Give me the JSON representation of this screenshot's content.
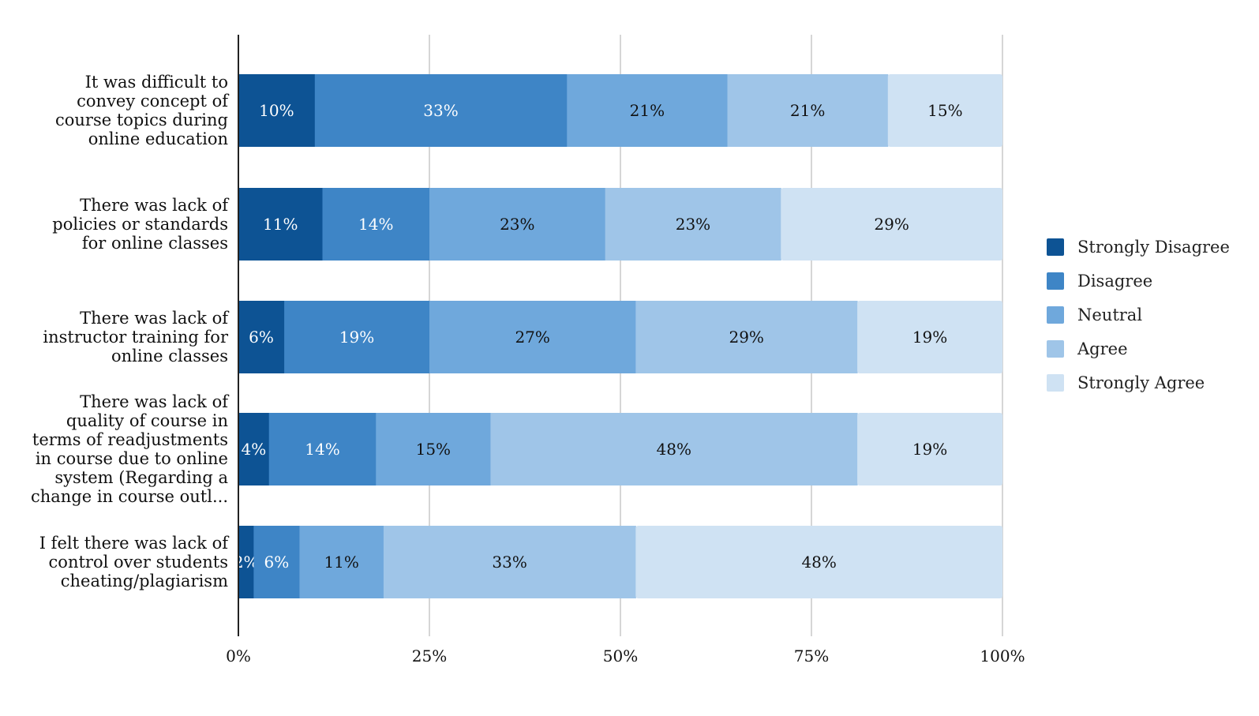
{
  "chart_data": {
    "type": "bar",
    "orientation": "horizontal",
    "stacked": true,
    "normalized": true,
    "title": "",
    "xlabel": "",
    "ylabel": "",
    "xlim": [
      0,
      100
    ],
    "xticks": [
      "0%",
      "25%",
      "50%",
      "75%",
      "100%"
    ],
    "grid": true,
    "legend_position": "right",
    "categories": [
      [
        "It was difficult to",
        "convey concept of",
        "course topics during",
        "online education"
      ],
      [
        "There was lack of",
        "policies or standards",
        "for online classes"
      ],
      [
        "There was lack of",
        "instructor training for",
        "online classes"
      ],
      [
        "There was lack of",
        "quality of course in",
        "terms of readjustments",
        "in course due to online",
        "system (Regarding a",
        "change in course outl..."
      ],
      [
        "I felt there was lack of",
        "control over students",
        "cheating/plagiarism"
      ]
    ],
    "series": [
      {
        "name": "Strongly Disagree",
        "color": "#0d5394",
        "label_color": "#ffffff",
        "values": [
          10,
          11,
          6,
          4,
          2
        ],
        "labels": [
          "10%",
          "11%",
          "6%",
          "4%",
          "2%"
        ]
      },
      {
        "name": "Disagree",
        "color": "#3e85c6",
        "label_color": "#ffffff",
        "values": [
          33,
          14,
          19,
          14,
          6
        ],
        "labels": [
          "33%",
          "14%",
          "19%",
          "14%",
          "6%"
        ]
      },
      {
        "name": "Neutral",
        "color": "#6fa8dc",
        "label_color": "#111111",
        "values": [
          21,
          23,
          27,
          15,
          11
        ],
        "labels": [
          "21%",
          "23%",
          "27%",
          "15%",
          "11%"
        ]
      },
      {
        "name": "Agree",
        "color": "#9fc5e8",
        "label_color": "#111111",
        "values": [
          21,
          23,
          29,
          48,
          33
        ],
        "labels": [
          "21%",
          "23%",
          "29%",
          "48%",
          "33%"
        ]
      },
      {
        "name": "Strongly Agree",
        "color": "#cfe2f3",
        "label_color": "#111111",
        "values": [
          15,
          29,
          19,
          19,
          48
        ],
        "labels": [
          "15%",
          "29%",
          "19%",
          "19%",
          "48%"
        ]
      }
    ]
  }
}
